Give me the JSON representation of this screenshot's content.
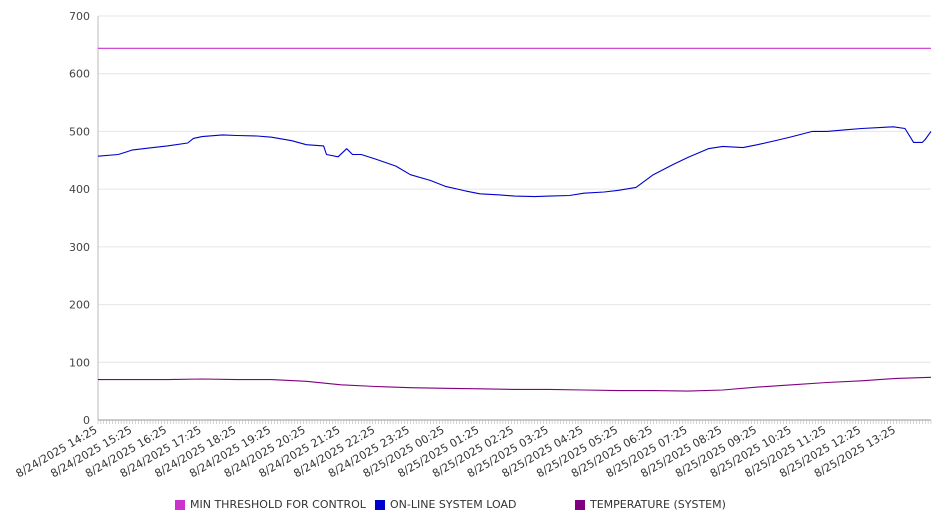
{
  "chart_data": {
    "type": "line",
    "title": "",
    "xlabel": "",
    "ylabel": "",
    "ylim": [
      0,
      700
    ],
    "y_ticks": [
      0,
      100,
      200,
      300,
      400,
      500,
      600,
      700
    ],
    "grid": true,
    "legend_position": "bottom",
    "x_tick_labels": [
      "8/24/2025 14:25",
      "8/24/2025 15:25",
      "8/24/2025 16:25",
      "8/24/2025 17:25",
      "8/24/2025 18:25",
      "8/24/2025 19:25",
      "8/24/2025 20:25",
      "8/24/2025 21:25",
      "8/24/2025 22:25",
      "8/24/2025 23:25",
      "8/25/2025 00:25",
      "8/25/2025 01:25",
      "8/25/2025 02:25",
      "8/25/2025 03:25",
      "8/25/2025 04:25",
      "8/25/2025 05:25",
      "8/25/2025 06:25",
      "8/25/2025 07:25",
      "8/25/2025 08:25",
      "8/25/2025 09:25",
      "8/25/2025 10:25",
      "8/25/2025 11:25",
      "8/25/2025 12:25",
      "8/25/2025 13:25"
    ],
    "x_start": "8/24/2025 14:25",
    "x_end": "8/25/2025 14:25",
    "series": [
      {
        "name": "MIN THRESHOLD FOR CONTROL",
        "color": "#cc33cc",
        "points": [
          [
            "8/24/2025 14:25",
            644
          ],
          [
            "8/25/2025 14:25",
            644
          ]
        ]
      },
      {
        "name": "ON-LINE SYSTEM LOAD",
        "color": "#0000cc",
        "points": [
          [
            "8/24/2025 14:25",
            457
          ],
          [
            "8/24/2025 15:00",
            460
          ],
          [
            "8/24/2025 15:25",
            468
          ],
          [
            "8/24/2025 16:00",
            472
          ],
          [
            "8/24/2025 16:25",
            475
          ],
          [
            "8/24/2025 17:00",
            480
          ],
          [
            "8/24/2025 17:10",
            488
          ],
          [
            "8/24/2025 17:25",
            491
          ],
          [
            "8/24/2025 18:00",
            494
          ],
          [
            "8/24/2025 18:25",
            493
          ],
          [
            "8/24/2025 19:00",
            492
          ],
          [
            "8/24/2025 19:25",
            490
          ],
          [
            "8/24/2025 20:00",
            484
          ],
          [
            "8/24/2025 20:25",
            477
          ],
          [
            "8/24/2025 20:55",
            475
          ],
          [
            "8/24/2025 21:00",
            460
          ],
          [
            "8/24/2025 21:20",
            456
          ],
          [
            "8/24/2025 21:35",
            470
          ],
          [
            "8/24/2025 21:45",
            460
          ],
          [
            "8/24/2025 22:00",
            460
          ],
          [
            "8/24/2025 22:25",
            452
          ],
          [
            "8/24/2025 23:00",
            440
          ],
          [
            "8/24/2025 23:25",
            425
          ],
          [
            "8/25/2025 00:00",
            415
          ],
          [
            "8/25/2025 00:25",
            405
          ],
          [
            "8/25/2025 01:00",
            397
          ],
          [
            "8/25/2025 01:25",
            392
          ],
          [
            "8/25/2025 02:00",
            390
          ],
          [
            "8/25/2025 02:25",
            388
          ],
          [
            "8/25/2025 03:00",
            387
          ],
          [
            "8/25/2025 03:25",
            388
          ],
          [
            "8/25/2025 04:00",
            389
          ],
          [
            "8/25/2025 04:25",
            393
          ],
          [
            "8/25/2025 05:00",
            395
          ],
          [
            "8/25/2025 05:25",
            398
          ],
          [
            "8/25/2025 05:55",
            403
          ],
          [
            "8/25/2025 06:25",
            425
          ],
          [
            "8/25/2025 07:00",
            443
          ],
          [
            "8/25/2025 07:25",
            455
          ],
          [
            "8/25/2025 08:00",
            470
          ],
          [
            "8/25/2025 08:25",
            474
          ],
          [
            "8/25/2025 09:00",
            472
          ],
          [
            "8/25/2025 09:25",
            477
          ],
          [
            "8/25/2025 10:00",
            485
          ],
          [
            "8/25/2025 10:25",
            491
          ],
          [
            "8/25/2025 11:00",
            500
          ],
          [
            "8/25/2025 11:25",
            500
          ],
          [
            "8/25/2025 12:00",
            503
          ],
          [
            "8/25/2025 12:25",
            505
          ],
          [
            "8/25/2025 13:00",
            507
          ],
          [
            "8/25/2025 13:20",
            508
          ],
          [
            "8/25/2025 13:40",
            505
          ],
          [
            "8/25/2025 13:55",
            481
          ],
          [
            "8/25/2025 14:10",
            481
          ],
          [
            "8/25/2025 14:15",
            486
          ],
          [
            "8/25/2025 14:25",
            500
          ]
        ]
      },
      {
        "name": "TEMPERATURE (SYSTEM)",
        "color": "#800080",
        "points": [
          [
            "8/24/2025 14:25",
            70
          ],
          [
            "8/24/2025 16:25",
            70
          ],
          [
            "8/24/2025 17:25",
            71
          ],
          [
            "8/24/2025 18:25",
            70
          ],
          [
            "8/24/2025 19:25",
            70
          ],
          [
            "8/24/2025 20:25",
            67
          ],
          [
            "8/24/2025 21:25",
            61
          ],
          [
            "8/24/2025 22:25",
            58
          ],
          [
            "8/24/2025 23:25",
            56
          ],
          [
            "8/25/2025 00:25",
            55
          ],
          [
            "8/25/2025 01:25",
            54
          ],
          [
            "8/25/2025 02:25",
            53
          ],
          [
            "8/25/2025 03:25",
            53
          ],
          [
            "8/25/2025 04:25",
            52
          ],
          [
            "8/25/2025 05:25",
            51
          ],
          [
            "8/25/2025 06:25",
            51
          ],
          [
            "8/25/2025 07:25",
            50
          ],
          [
            "8/25/2025 08:25",
            52
          ],
          [
            "8/25/2025 09:25",
            57
          ],
          [
            "8/25/2025 10:25",
            61
          ],
          [
            "8/25/2025 11:25",
            65
          ],
          [
            "8/25/2025 12:25",
            68
          ],
          [
            "8/25/2025 13:25",
            72
          ],
          [
            "8/25/2025 14:25",
            74
          ]
        ]
      }
    ]
  }
}
